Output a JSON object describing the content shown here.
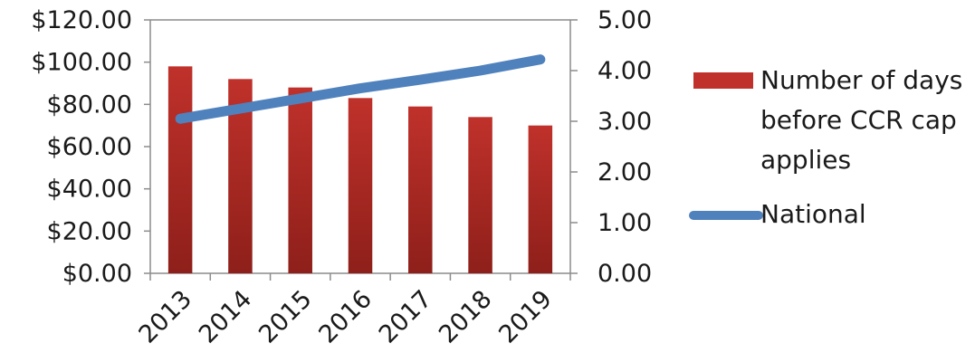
{
  "chart_data": {
    "type": "bar",
    "categories": [
      "2013",
      "2014",
      "2015",
      "2016",
      "2017",
      "2018",
      "2019"
    ],
    "series": [
      {
        "name": "Number of days before CCR cap applies",
        "type": "bar",
        "axis": "left",
        "color": "#c0312b",
        "values": [
          98,
          92,
          88,
          83,
          79,
          74,
          70
        ]
      },
      {
        "name": "National",
        "type": "line",
        "axis": "right",
        "color": "#4f81bd",
        "values": [
          3.05,
          3.25,
          3.45,
          3.65,
          3.82,
          4.0,
          4.22
        ]
      }
    ],
    "y_left": {
      "ticks": [
        "$120.00",
        "$100.00",
        "$80.00",
        "$60.00",
        "$40.00",
        "$20.00",
        "$0.00"
      ],
      "ylim": [
        0,
        120
      ]
    },
    "y_right": {
      "ticks": [
        "5.00",
        "4.00",
        "3.00",
        "2.00",
        "1.00",
        "0.00"
      ],
      "ylim": [
        0,
        5
      ]
    },
    "legend_placement": "right",
    "legend": {
      "bar_label_lines": [
        "Number of days",
        "before CCR cap",
        "applies"
      ],
      "line_label": "National"
    },
    "grid": false
  }
}
